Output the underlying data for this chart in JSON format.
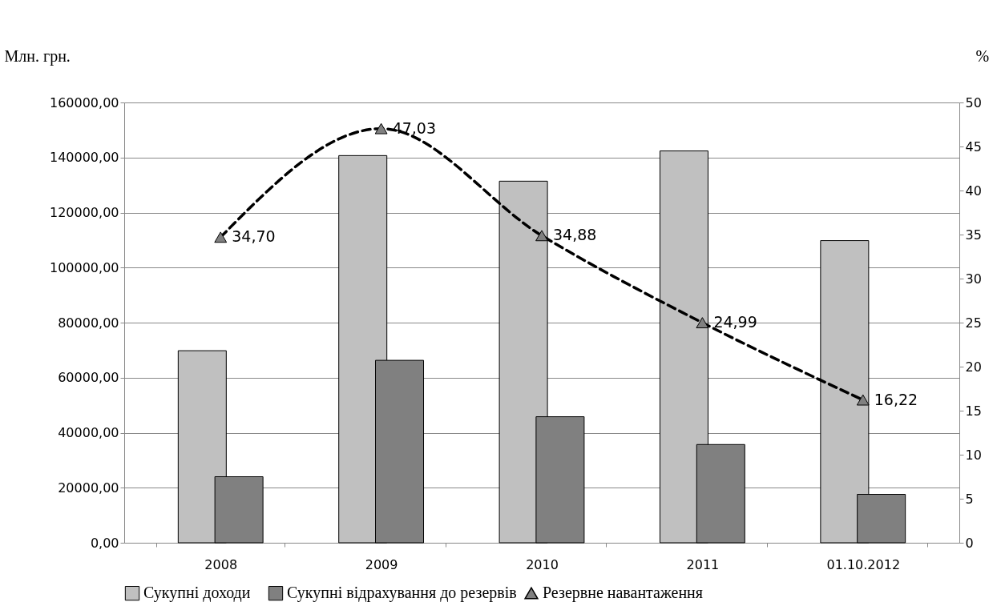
{
  "chart_data": {
    "type": "bar",
    "ylabel": "Млн. грн.",
    "y2label": "%",
    "categories": [
      "2008",
      "2009",
      "2010",
      "2011",
      "01.10.2012"
    ],
    "series": [
      {
        "name": "Сукупні доходи",
        "color": "#c0c0c0",
        "values": [
          69800,
          140700,
          131400,
          142400,
          109800
        ]
      },
      {
        "name": "Сукупні відрахування до резервів",
        "color": "#808080",
        "values": [
          24000,
          66300,
          45800,
          35700,
          17600
        ]
      },
      {
        "name": "Резервне навантаження",
        "type": "line",
        "axis": "y2",
        "color": "#000000",
        "marker": "triangle",
        "line_style": "dashed",
        "values": [
          34.7,
          47.03,
          34.88,
          24.99,
          16.22
        ],
        "value_labels": [
          "34,70",
          "47,03",
          "34,88",
          "24,99",
          "16,22"
        ]
      }
    ],
    "ylim": [
      0,
      160000
    ],
    "yticks": [
      {
        "value": 0,
        "label": "0,00"
      },
      {
        "value": 20000,
        "label": "20000,00"
      },
      {
        "value": 40000,
        "label": "40000,00"
      },
      {
        "value": 60000,
        "label": "60000,00"
      },
      {
        "value": 80000,
        "label": "80000,00"
      },
      {
        "value": 100000,
        "label": "100000,00"
      },
      {
        "value": 120000,
        "label": "120000,00"
      },
      {
        "value": 140000,
        "label": "140000,00"
      },
      {
        "value": 160000,
        "label": "160000,00"
      }
    ],
    "y2lim": [
      0,
      50
    ],
    "y2ticks": [
      0,
      5,
      10,
      15,
      20,
      25,
      30,
      35,
      40,
      45,
      50
    ],
    "grid": "y",
    "legend": "bottom"
  }
}
